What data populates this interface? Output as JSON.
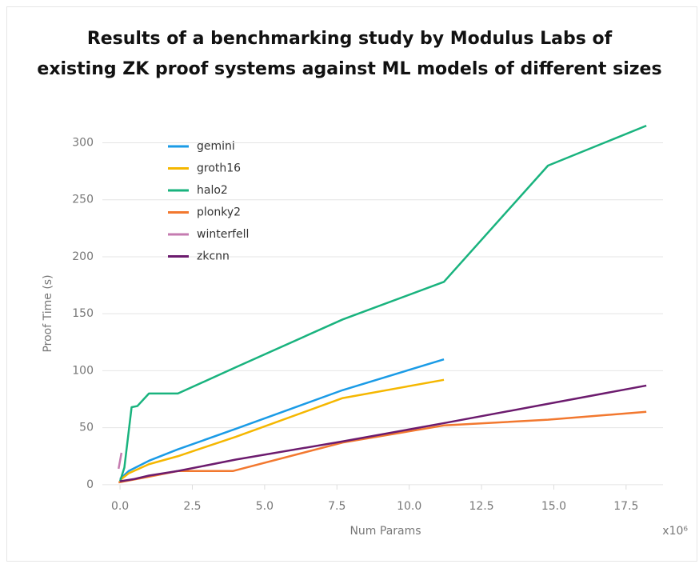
{
  "chart_data": {
    "type": "line",
    "title": "Results of a benchmarking study by Modulus Labs of\nexisting ZK proof systems against ML models of different sizes",
    "x_label": "Num Params",
    "y_label": "Proof Time (s)",
    "x_exponent_label": "x10⁶",
    "xlim": [
      -0.5,
      18.5
    ],
    "ylim": [
      -5,
      320
    ],
    "xticks": [
      {
        "value": 0,
        "label": "0.0"
      },
      2.5,
      {
        "value": 5,
        "label": "5.0"
      },
      7.5,
      {
        "value": 10,
        "label": "10.0"
      },
      12.5,
      {
        "value": 15,
        "label": "15.0"
      },
      17.5
    ],
    "yticks": [
      0,
      50,
      100,
      150,
      200,
      250,
      300
    ],
    "grid": true,
    "legend": "upper-left",
    "series": [
      {
        "name": "gemini",
        "color": "#1a9be6",
        "x": [
          0,
          0.3,
          1,
          2,
          4,
          7.7,
          11.2
        ],
        "values": [
          5,
          12,
          21,
          31,
          49,
          83,
          110
        ]
      },
      {
        "name": "groth16",
        "color": "#f5b700",
        "x": [
          0,
          0.3,
          1,
          2,
          4,
          7.7,
          11.2
        ],
        "values": [
          4,
          10,
          18,
          25,
          42,
          76,
          92
        ]
      },
      {
        "name": "halo2",
        "color": "#19b37e",
        "x": [
          0,
          0.15,
          0.4,
          0.6,
          1,
          2,
          4,
          7.7,
          11.2,
          14.8,
          18.2
        ],
        "values": [
          3,
          15,
          68,
          69,
          80,
          80,
          103,
          145,
          178,
          280,
          315
        ]
      },
      {
        "name": "plonky2",
        "color": "#f2782f",
        "x": [
          -0.05,
          1,
          2,
          3.9,
          7.7,
          11.2,
          14.8,
          18.2
        ],
        "values": [
          2,
          7,
          12,
          12,
          37,
          52,
          57,
          64
        ]
      },
      {
        "name": "winterfell",
        "color": "#c57bb0",
        "x": [
          -0.05,
          0.05
        ],
        "values": [
          14,
          28
        ]
      },
      {
        "name": "zkcnn",
        "color": "#6c1b6e",
        "x": [
          0,
          0.5,
          1,
          2,
          4,
          7.7,
          11.2,
          18.2
        ],
        "values": [
          3,
          5,
          8,
          12,
          22,
          38,
          54,
          87
        ]
      }
    ]
  }
}
